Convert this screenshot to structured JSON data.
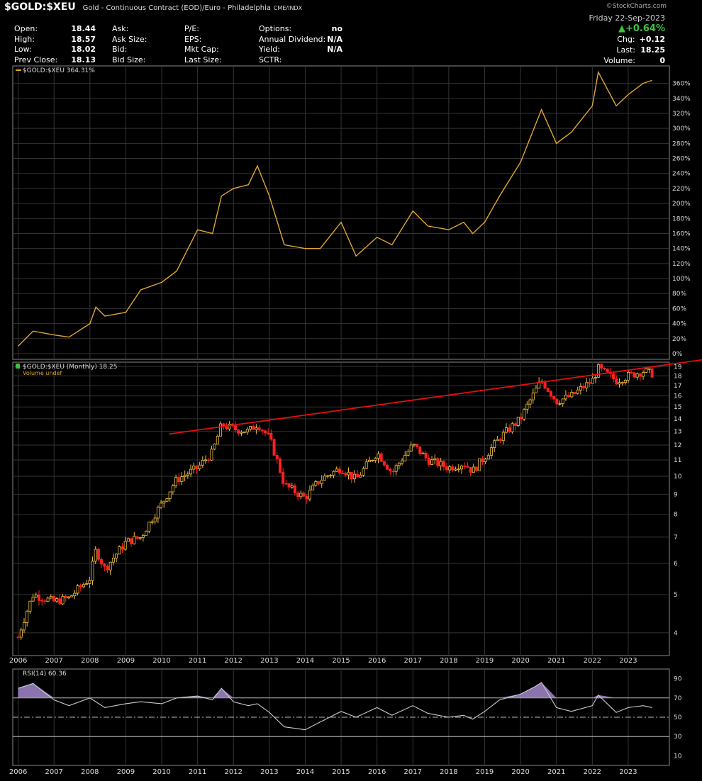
{
  "header": {
    "symbol": "$GOLD:$XEU",
    "description": "Gold - Continuous Contract (EOD)/Euro - Philadelphia",
    "exchange": "CME/INDX",
    "brand": "©StockCharts.com",
    "date": "Friday  22-Sep-2023",
    "change_pct": "▲+0.64%",
    "chg_label": "Chg:",
    "chg_value": "+0.12",
    "last_label": "Last:",
    "last_value": "18.25",
    "volume_label": "Volume:",
    "volume_value": "0"
  },
  "quote": {
    "col1": [
      {
        "label": "Open:",
        "value": "18.44"
      },
      {
        "label": "High:",
        "value": "18.57"
      },
      {
        "label": "Low:",
        "value": "18.02"
      },
      {
        "label": "Prev Close:",
        "value": "18.13"
      }
    ],
    "col2": [
      {
        "label": "Ask:",
        "value": ""
      },
      {
        "label": "Ask Size:",
        "value": ""
      },
      {
        "label": "Bid:",
        "value": ""
      },
      {
        "label": "Bid Size:",
        "value": ""
      }
    ],
    "col3": [
      {
        "label": "P/E:",
        "value": ""
      },
      {
        "label": "EPS:",
        "value": ""
      },
      {
        "label": "Mkt Cap:",
        "value": ""
      },
      {
        "label": "Last Size:",
        "value": ""
      }
    ],
    "col4": [
      {
        "label": "Options:",
        "value": "no"
      },
      {
        "label": "Annual Dividend:",
        "value": "N/A"
      },
      {
        "label": "Yield:",
        "value": "N/A"
      },
      {
        "label": "SCTR:",
        "value": ""
      }
    ]
  },
  "chart_data": [
    {
      "type": "line",
      "legend": "$GOLD:$XEU 364.31%",
      "color": "#e0a830",
      "x": [
        "2006-01",
        "2006-06",
        "2007-01",
        "2007-06",
        "2008-01",
        "2008-03",
        "2008-06",
        "2009-01",
        "2009-06",
        "2010-01",
        "2010-06",
        "2011-01",
        "2011-06",
        "2011-09",
        "2012-01",
        "2012-06",
        "2012-09",
        "2013-01",
        "2013-06",
        "2014-01",
        "2014-06",
        "2015-01",
        "2015-06",
        "2016-01",
        "2016-06",
        "2017-01",
        "2017-06",
        "2018-01",
        "2018-06",
        "2018-09",
        "2019-01",
        "2019-06",
        "2020-01",
        "2020-06",
        "2020-08",
        "2021-01",
        "2021-06",
        "2022-01",
        "2022-03",
        "2022-09",
        "2023-01",
        "2023-06",
        "2023-09"
      ],
      "y": [
        10,
        30,
        25,
        22,
        40,
        62,
        50,
        55,
        85,
        95,
        110,
        165,
        160,
        210,
        220,
        225,
        250,
        210,
        145,
        140,
        140,
        175,
        130,
        155,
        145,
        190,
        170,
        165,
        175,
        160,
        175,
        210,
        255,
        305,
        325,
        280,
        295,
        330,
        375,
        330,
        345,
        360,
        364
      ],
      "ylim": [
        0,
        370
      ],
      "y_ticks": [
        "0%",
        "20%",
        "40%",
        "60%",
        "80%",
        "100%",
        "120%",
        "140%",
        "160%",
        "180%",
        "200%",
        "220%",
        "240%",
        "260%",
        "280%",
        "300%",
        "320%",
        "340%",
        "360%"
      ],
      "grid": true
    },
    {
      "type": "candlestick",
      "title": "$GOLD:$XEU (Monthly) 18.25",
      "subtitle": "Volume undef",
      "x": [
        "2006-01",
        "2006-06",
        "2007-01",
        "2007-06",
        "2008-01",
        "2008-03",
        "2008-06",
        "2009-01",
        "2009-06",
        "2010-01",
        "2010-06",
        "2011-01",
        "2011-06",
        "2011-09",
        "2012-01",
        "2012-06",
        "2012-09",
        "2013-01",
        "2013-06",
        "2014-01",
        "2014-06",
        "2015-01",
        "2015-06",
        "2016-01",
        "2016-06",
        "2017-01",
        "2017-06",
        "2018-01",
        "2018-06",
        "2018-09",
        "2019-01",
        "2019-06",
        "2020-01",
        "2020-06",
        "2020-08",
        "2021-01",
        "2021-06",
        "2022-01",
        "2022-03",
        "2022-09",
        "2023-01",
        "2023-06",
        "2023-09"
      ],
      "close": [
        3.9,
        5.0,
        4.8,
        4.9,
        5.5,
        6.5,
        5.8,
        6.8,
        7.0,
        8.5,
        9.8,
        10.5,
        11.5,
        13.5,
        13.2,
        13.0,
        13.6,
        12.5,
        9.5,
        8.8,
        9.8,
        10.5,
        9.8,
        11.5,
        10.2,
        12.0,
        11.0,
        10.5,
        10.8,
        10.3,
        11.2,
        12.5,
        14.0,
        16.5,
        17.5,
        15.5,
        16.0,
        17.5,
        18.8,
        17.5,
        18.0,
        18.5,
        18.25
      ],
      "y_ticks": [
        4,
        5,
        6,
        7,
        8,
        9,
        10,
        11,
        12,
        13,
        14,
        15,
        16,
        17,
        18,
        19
      ],
      "y_scale": "log",
      "ylim": [
        3.5,
        19.5
      ],
      "up_color": "#f0c040",
      "down_color": "#ff2020",
      "trendline": {
        "from": [
          "2010-01",
          12.8
        ],
        "to": [
          "2024-01",
          19.6
        ],
        "color": "#e01010"
      },
      "grid": true
    },
    {
      "type": "line",
      "legend": "RSI(14) 60.36",
      "x": [
        "2006-01",
        "2006-06",
        "2007-01",
        "2007-06",
        "2008-01",
        "2008-03",
        "2008-06",
        "2009-01",
        "2009-06",
        "2010-01",
        "2010-06",
        "2011-01",
        "2011-06",
        "2011-09",
        "2012-01",
        "2012-06",
        "2012-09",
        "2013-01",
        "2013-06",
        "2014-01",
        "2014-06",
        "2015-01",
        "2015-06",
        "2016-01",
        "2016-06",
        "2017-01",
        "2017-06",
        "2018-01",
        "2018-06",
        "2018-09",
        "2019-01",
        "2019-06",
        "2020-01",
        "2020-06",
        "2020-08",
        "2021-01",
        "2021-06",
        "2022-01",
        "2022-03",
        "2022-09",
        "2023-01",
        "2023-06",
        "2023-09"
      ],
      "y": [
        80,
        85,
        68,
        62,
        70,
        66,
        60,
        64,
        66,
        64,
        70,
        72,
        68,
        80,
        66,
        62,
        64,
        55,
        40,
        37,
        45,
        56,
        50,
        60,
        52,
        62,
        54,
        50,
        52,
        48,
        56,
        68,
        74,
        82,
        86,
        60,
        56,
        62,
        73,
        55,
        60,
        62,
        60
      ],
      "ylim": [
        0,
        100
      ],
      "y_ticks": [
        10,
        30,
        50,
        70,
        90
      ],
      "overbought": 70,
      "oversold": 30,
      "midline": 50,
      "grid": true
    }
  ],
  "x_axis_labels": [
    "2006",
    "2007",
    "2008",
    "2009",
    "2010",
    "2011",
    "2012",
    "2013",
    "2014",
    "2015",
    "2016",
    "2017",
    "2018",
    "2019",
    "2020",
    "2021",
    "2022",
    "2023"
  ]
}
